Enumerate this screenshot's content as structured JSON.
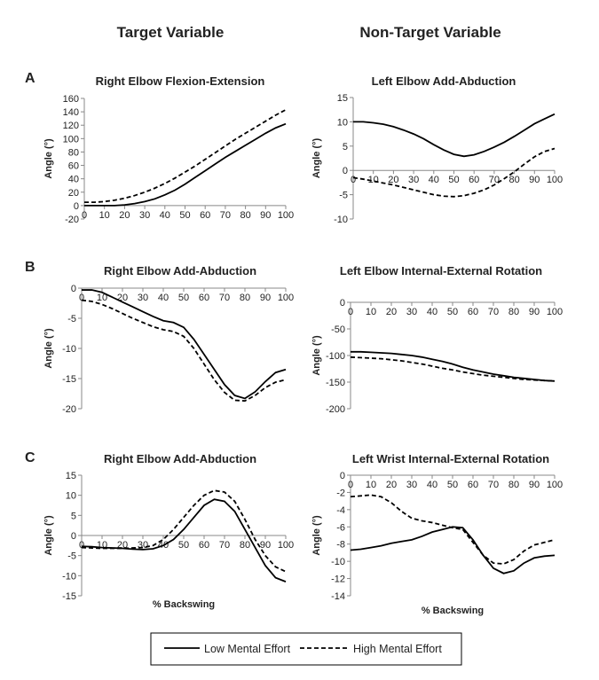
{
  "headers": {
    "columns": [
      "Target Variable",
      "Non-Target Variable"
    ],
    "rows": [
      "A",
      "B",
      "C"
    ]
  },
  "legend": {
    "items": [
      {
        "name": "Low Mental Effort",
        "dashed": false
      },
      {
        "name": "High Mental Effort",
        "dashed": true
      }
    ]
  },
  "chart_data": [
    {
      "type": "line",
      "title": "Right Elbow Flexion-Extension",
      "ylabel": "Angle (°)",
      "x": [
        0,
        5,
        10,
        15,
        20,
        25,
        30,
        35,
        40,
        45,
        50,
        55,
        60,
        65,
        70,
        75,
        80,
        85,
        90,
        95,
        100
      ],
      "xlim": [
        0,
        100
      ],
      "xticks": [
        0,
        10,
        20,
        30,
        40,
        50,
        60,
        70,
        80,
        90,
        100
      ],
      "ylim": [
        -20,
        160
      ],
      "yticks": [
        -20,
        0,
        20,
        40,
        60,
        80,
        100,
        120,
        140,
        160
      ],
      "series": [
        {
          "dashed": false,
          "color": "#000000",
          "values": [
            0,
            0,
            0,
            0,
            1,
            3,
            6,
            10,
            16,
            23,
            32,
            42,
            52,
            62,
            72,
            81,
            90,
            99,
            108,
            116,
            122
          ]
        },
        {
          "dashed": true,
          "color": "#000000",
          "values": [
            5,
            5,
            6,
            8,
            11,
            15,
            20,
            26,
            33,
            41,
            50,
            59,
            69,
            79,
            89,
            99,
            108,
            117,
            126,
            135,
            143
          ]
        }
      ]
    },
    {
      "type": "line",
      "title": "Left Elbow Add-Abduction",
      "ylabel": "Angle (°)",
      "x": [
        0,
        5,
        10,
        15,
        20,
        25,
        30,
        35,
        40,
        45,
        50,
        55,
        60,
        65,
        70,
        75,
        80,
        85,
        90,
        95,
        100
      ],
      "xlim": [
        0,
        100
      ],
      "xticks": [
        0,
        10,
        20,
        30,
        40,
        50,
        60,
        70,
        80,
        90,
        100
      ],
      "ylim": [
        -10,
        15
      ],
      "yticks": [
        -10,
        -5,
        0,
        5,
        10,
        15
      ],
      "series": [
        {
          "dashed": false,
          "color": "#000000",
          "values": [
            10,
            10,
            9.8,
            9.5,
            9,
            8.3,
            7.5,
            6.5,
            5.3,
            4.2,
            3.3,
            2.9,
            3.2,
            3.9,
            4.8,
            5.8,
            7,
            8.3,
            9.6,
            10.6,
            11.6
          ]
        },
        {
          "dashed": true,
          "color": "#000000",
          "values": [
            -1.5,
            -1.8,
            -2.2,
            -2.6,
            -3,
            -3.5,
            -4,
            -4.5,
            -5,
            -5.3,
            -5.4,
            -5.2,
            -4.7,
            -4,
            -3,
            -1.7,
            -0.3,
            1.3,
            2.8,
            3.9,
            4.5
          ]
        }
      ]
    },
    {
      "type": "line",
      "title": "Right Elbow Add-Abduction",
      "ylabel": "Angle (°)",
      "x": [
        0,
        5,
        10,
        15,
        20,
        25,
        30,
        35,
        40,
        45,
        50,
        55,
        60,
        65,
        70,
        75,
        80,
        85,
        90,
        95,
        100
      ],
      "xlim": [
        0,
        100
      ],
      "xticks": [
        0,
        10,
        20,
        30,
        40,
        50,
        60,
        70,
        80,
        90,
        100
      ],
      "ylim": [
        -20,
        0
      ],
      "yticks": [
        -20,
        -15,
        -10,
        -5,
        0
      ],
      "series": [
        {
          "dashed": false,
          "color": "#000000",
          "values": [
            -0.3,
            -0.3,
            -0.7,
            -1.5,
            -2.3,
            -3.1,
            -3.9,
            -4.7,
            -5.4,
            -5.7,
            -6.5,
            -8.5,
            -11,
            -13.5,
            -16,
            -17.8,
            -18.3,
            -17.2,
            -15.5,
            -14,
            -13.5
          ]
        },
        {
          "dashed": true,
          "color": "#000000",
          "values": [
            -2,
            -2.2,
            -2.7,
            -3.4,
            -4.2,
            -5,
            -5.7,
            -6.4,
            -6.9,
            -7.2,
            -8,
            -10,
            -12.6,
            -15.2,
            -17.3,
            -18.6,
            -18.7,
            -17.8,
            -16.5,
            -15.6,
            -15.2
          ]
        }
      ]
    },
    {
      "type": "line",
      "title": "Left Elbow Internal-External Rotation",
      "ylabel": "Angle (°)",
      "x": [
        0,
        5,
        10,
        15,
        20,
        25,
        30,
        35,
        40,
        45,
        50,
        55,
        60,
        65,
        70,
        75,
        80,
        85,
        90,
        95,
        100
      ],
      "xlim": [
        0,
        100
      ],
      "xticks": [
        0,
        10,
        20,
        30,
        40,
        50,
        60,
        70,
        80,
        90,
        100
      ],
      "ylim": [
        -200,
        0
      ],
      "yticks": [
        -200,
        -150,
        -100,
        -50,
        0
      ],
      "series": [
        {
          "dashed": false,
          "color": "#000000",
          "values": [
            -93,
            -93,
            -94,
            -95,
            -96,
            -98,
            -100,
            -103,
            -107,
            -111,
            -116,
            -122,
            -127,
            -131,
            -135,
            -138,
            -141,
            -143,
            -145,
            -147,
            -148
          ]
        },
        {
          "dashed": true,
          "color": "#000000",
          "values": [
            -103,
            -104,
            -105,
            -106,
            -108,
            -110,
            -113,
            -116,
            -120,
            -124,
            -127,
            -131,
            -134,
            -137,
            -139,
            -141,
            -143,
            -145,
            -146,
            -147,
            -148
          ]
        }
      ]
    },
    {
      "type": "line",
      "title": "Right Elbow Add-Abduction",
      "ylabel": "Angle (°)",
      "xlabel": "% Backswing",
      "x": [
        0,
        5,
        10,
        15,
        20,
        25,
        30,
        35,
        40,
        45,
        50,
        55,
        60,
        65,
        70,
        75,
        80,
        85,
        90,
        95,
        100
      ],
      "xlim": [
        0,
        100
      ],
      "xticks": [
        0,
        10,
        20,
        30,
        40,
        50,
        60,
        70,
        80,
        90,
        100
      ],
      "ylim": [
        -15,
        15
      ],
      "yticks": [
        -15,
        -10,
        -5,
        0,
        5,
        10,
        15
      ],
      "series": [
        {
          "dashed": false,
          "color": "#000000",
          "values": [
            -2.7,
            -2.8,
            -3,
            -3.1,
            -3.2,
            -3.4,
            -3.5,
            -3.3,
            -2.5,
            -1,
            1.5,
            4.5,
            7.5,
            9,
            8.5,
            6,
            1.5,
            -3,
            -7.5,
            -10.5,
            -11.5
          ]
        },
        {
          "dashed": true,
          "color": "#000000",
          "values": [
            -3,
            -3.1,
            -3.2,
            -3.2,
            -3.2,
            -3.1,
            -3,
            -2.5,
            -1,
            1.5,
            4.5,
            7.5,
            10,
            11.2,
            10.8,
            8.5,
            4,
            -1,
            -5,
            -7.8,
            -9
          ]
        }
      ]
    },
    {
      "type": "line",
      "title": "Left Wrist Internal-External Rotation",
      "ylabel": "Angle (°)",
      "xlabel": "% Backswing",
      "x": [
        0,
        5,
        10,
        15,
        20,
        25,
        30,
        35,
        40,
        45,
        50,
        55,
        60,
        65,
        70,
        75,
        80,
        85,
        90,
        95,
        100
      ],
      "xlim": [
        0,
        100
      ],
      "xticks": [
        0,
        10,
        20,
        30,
        40,
        50,
        60,
        70,
        80,
        90,
        100
      ],
      "ylim": [
        -14,
        0
      ],
      "yticks": [
        -14,
        -12,
        -10,
        -8,
        -6,
        -4,
        -2,
        0
      ],
      "series": [
        {
          "dashed": false,
          "color": "#000000",
          "values": [
            -8.7,
            -8.6,
            -8.4,
            -8.2,
            -7.9,
            -7.7,
            -7.5,
            -7.1,
            -6.6,
            -6.3,
            -6,
            -6.1,
            -7.5,
            -9.3,
            -10.8,
            -11.4,
            -11.1,
            -10.2,
            -9.6,
            -9.4,
            -9.3
          ]
        },
        {
          "dashed": true,
          "color": "#000000",
          "values": [
            -2.5,
            -2.4,
            -2.3,
            -2.5,
            -3.2,
            -4.2,
            -5,
            -5.3,
            -5.5,
            -5.8,
            -6.1,
            -6.3,
            -7.8,
            -9.3,
            -10.2,
            -10.3,
            -9.8,
            -8.8,
            -8.1,
            -7.8,
            -7.5
          ]
        }
      ]
    }
  ]
}
